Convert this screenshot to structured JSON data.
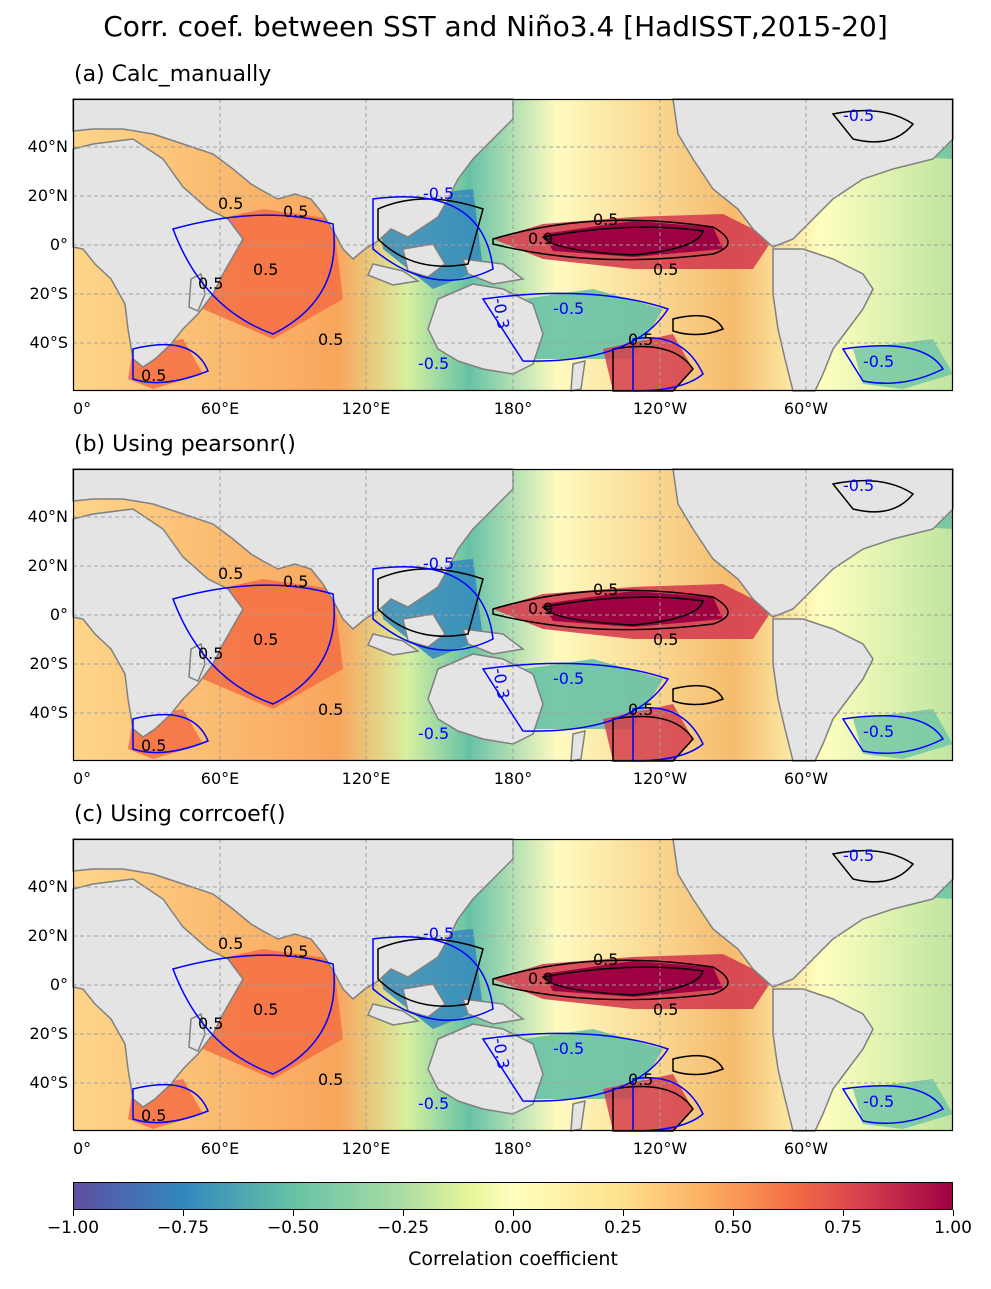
{
  "title": "Corr. coef. between SST and Niño3.4 [HadISST,2015-20]",
  "panels": [
    {
      "id": "a",
      "title": "(a) Calc_manually"
    },
    {
      "id": "b",
      "title": "(b) Using pearsonr()"
    },
    {
      "id": "c",
      "title": "(c) Using corrcoef()"
    }
  ],
  "axes": {
    "lon_ticks": [
      "0°",
      "60°E",
      "120°E",
      "180°",
      "120°W",
      "60°W"
    ],
    "lat_ticks": [
      "40°N",
      "20°N",
      "0°",
      "20°S",
      "40°S"
    ]
  },
  "contour_labels": {
    "positive": [
      "0.5",
      "0.5",
      "0.5",
      "0.5",
      "0.5",
      "0.5",
      "0.9",
      "0.5",
      "0.5",
      "0.5"
    ],
    "negative": [
      "-0.5",
      "-0.5",
      "-0.5",
      "-0.5",
      "-0.5",
      "-0.3"
    ]
  },
  "colorbar": {
    "label": "Correlation coefficient",
    "ticks": [
      "−1.00",
      "−0.75",
      "−0.50",
      "−0.25",
      "0.00",
      "0.25",
      "0.50",
      "0.75",
      "1.00"
    ],
    "colormap": "Spectral_r",
    "range": [
      -1,
      1
    ]
  },
  "colors": {
    "land": "#e4e4e4",
    "coast": "#808080",
    "contour_positive": "#000000",
    "contour_negative": "#0000ff",
    "grid": "#a0a0a0"
  }
}
